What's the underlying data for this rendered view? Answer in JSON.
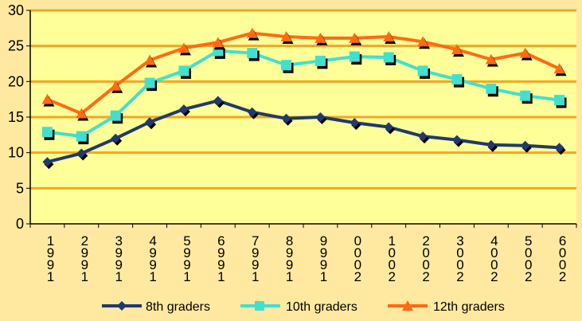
{
  "chart_data": {
    "type": "line",
    "title": "",
    "xlabel": "",
    "ylabel": "",
    "ylim": [
      0,
      30
    ],
    "yticks": [
      0,
      5,
      10,
      15,
      20,
      25,
      30
    ],
    "grid": true,
    "legend_position": "bottom",
    "categories": [
      "1991",
      "1992",
      "1993",
      "1994",
      "1995",
      "1996",
      "1997",
      "1998",
      "1999",
      "2000",
      "2001",
      "2002",
      "2003",
      "2004",
      "2005",
      "2006"
    ],
    "tick_label_digits": [
      [
        "1",
        "9",
        "9",
        "1"
      ],
      [
        "2",
        "9",
        "9",
        "1"
      ],
      [
        "3",
        "9",
        "9",
        "1"
      ],
      [
        "4",
        "9",
        "9",
        "1"
      ],
      [
        "5",
        "9",
        "9",
        "1"
      ],
      [
        "6",
        "9",
        "9",
        "1"
      ],
      [
        "7",
        "9",
        "9",
        "1"
      ],
      [
        "8",
        "9",
        "9",
        "1"
      ],
      [
        "9",
        "9",
        "9",
        "1"
      ],
      [
        "0",
        "0",
        "0",
        "2"
      ],
      [
        "1",
        "0",
        "0",
        "2"
      ],
      [
        "2",
        "0",
        "0",
        "2"
      ],
      [
        "3",
        "0",
        "0",
        "2"
      ],
      [
        "4",
        "0",
        "0",
        "2"
      ],
      [
        "5",
        "0",
        "0",
        "2"
      ],
      [
        "6",
        "0",
        "0",
        "2"
      ]
    ],
    "series": [
      {
        "name": "8th graders",
        "color": "#1F3A6E",
        "marker": "diamond",
        "values": [
          8.7,
          9.9,
          12.0,
          14.3,
          16.1,
          17.3,
          15.7,
          14.8,
          15.0,
          14.2,
          13.6,
          12.3,
          11.8,
          11.1,
          11.0,
          10.7
        ]
      },
      {
        "name": "10th graders",
        "color": "#40E0D0",
        "marker": "square",
        "values": [
          12.9,
          12.3,
          15.2,
          19.8,
          21.5,
          24.3,
          24.0,
          22.3,
          22.9,
          23.5,
          23.4,
          21.5,
          20.3,
          19.0,
          18.0,
          17.4
        ]
      },
      {
        "name": "12th graders",
        "color": "#FF6A13",
        "marker": "triangle",
        "values": [
          17.5,
          15.5,
          19.4,
          23.0,
          24.7,
          25.5,
          26.8,
          26.3,
          26.1,
          26.1,
          26.3,
          25.6,
          24.5,
          23.1,
          24.0,
          21.8
        ]
      }
    ]
  },
  "legend": {
    "item_0": "8th graders",
    "item_1": "10th graders",
    "item_2": "12th graders"
  },
  "colors": {
    "background": "#FFE9A0",
    "plot_background": "#FFFF99",
    "gridline": "#F5A623",
    "axis": "#000000"
  }
}
